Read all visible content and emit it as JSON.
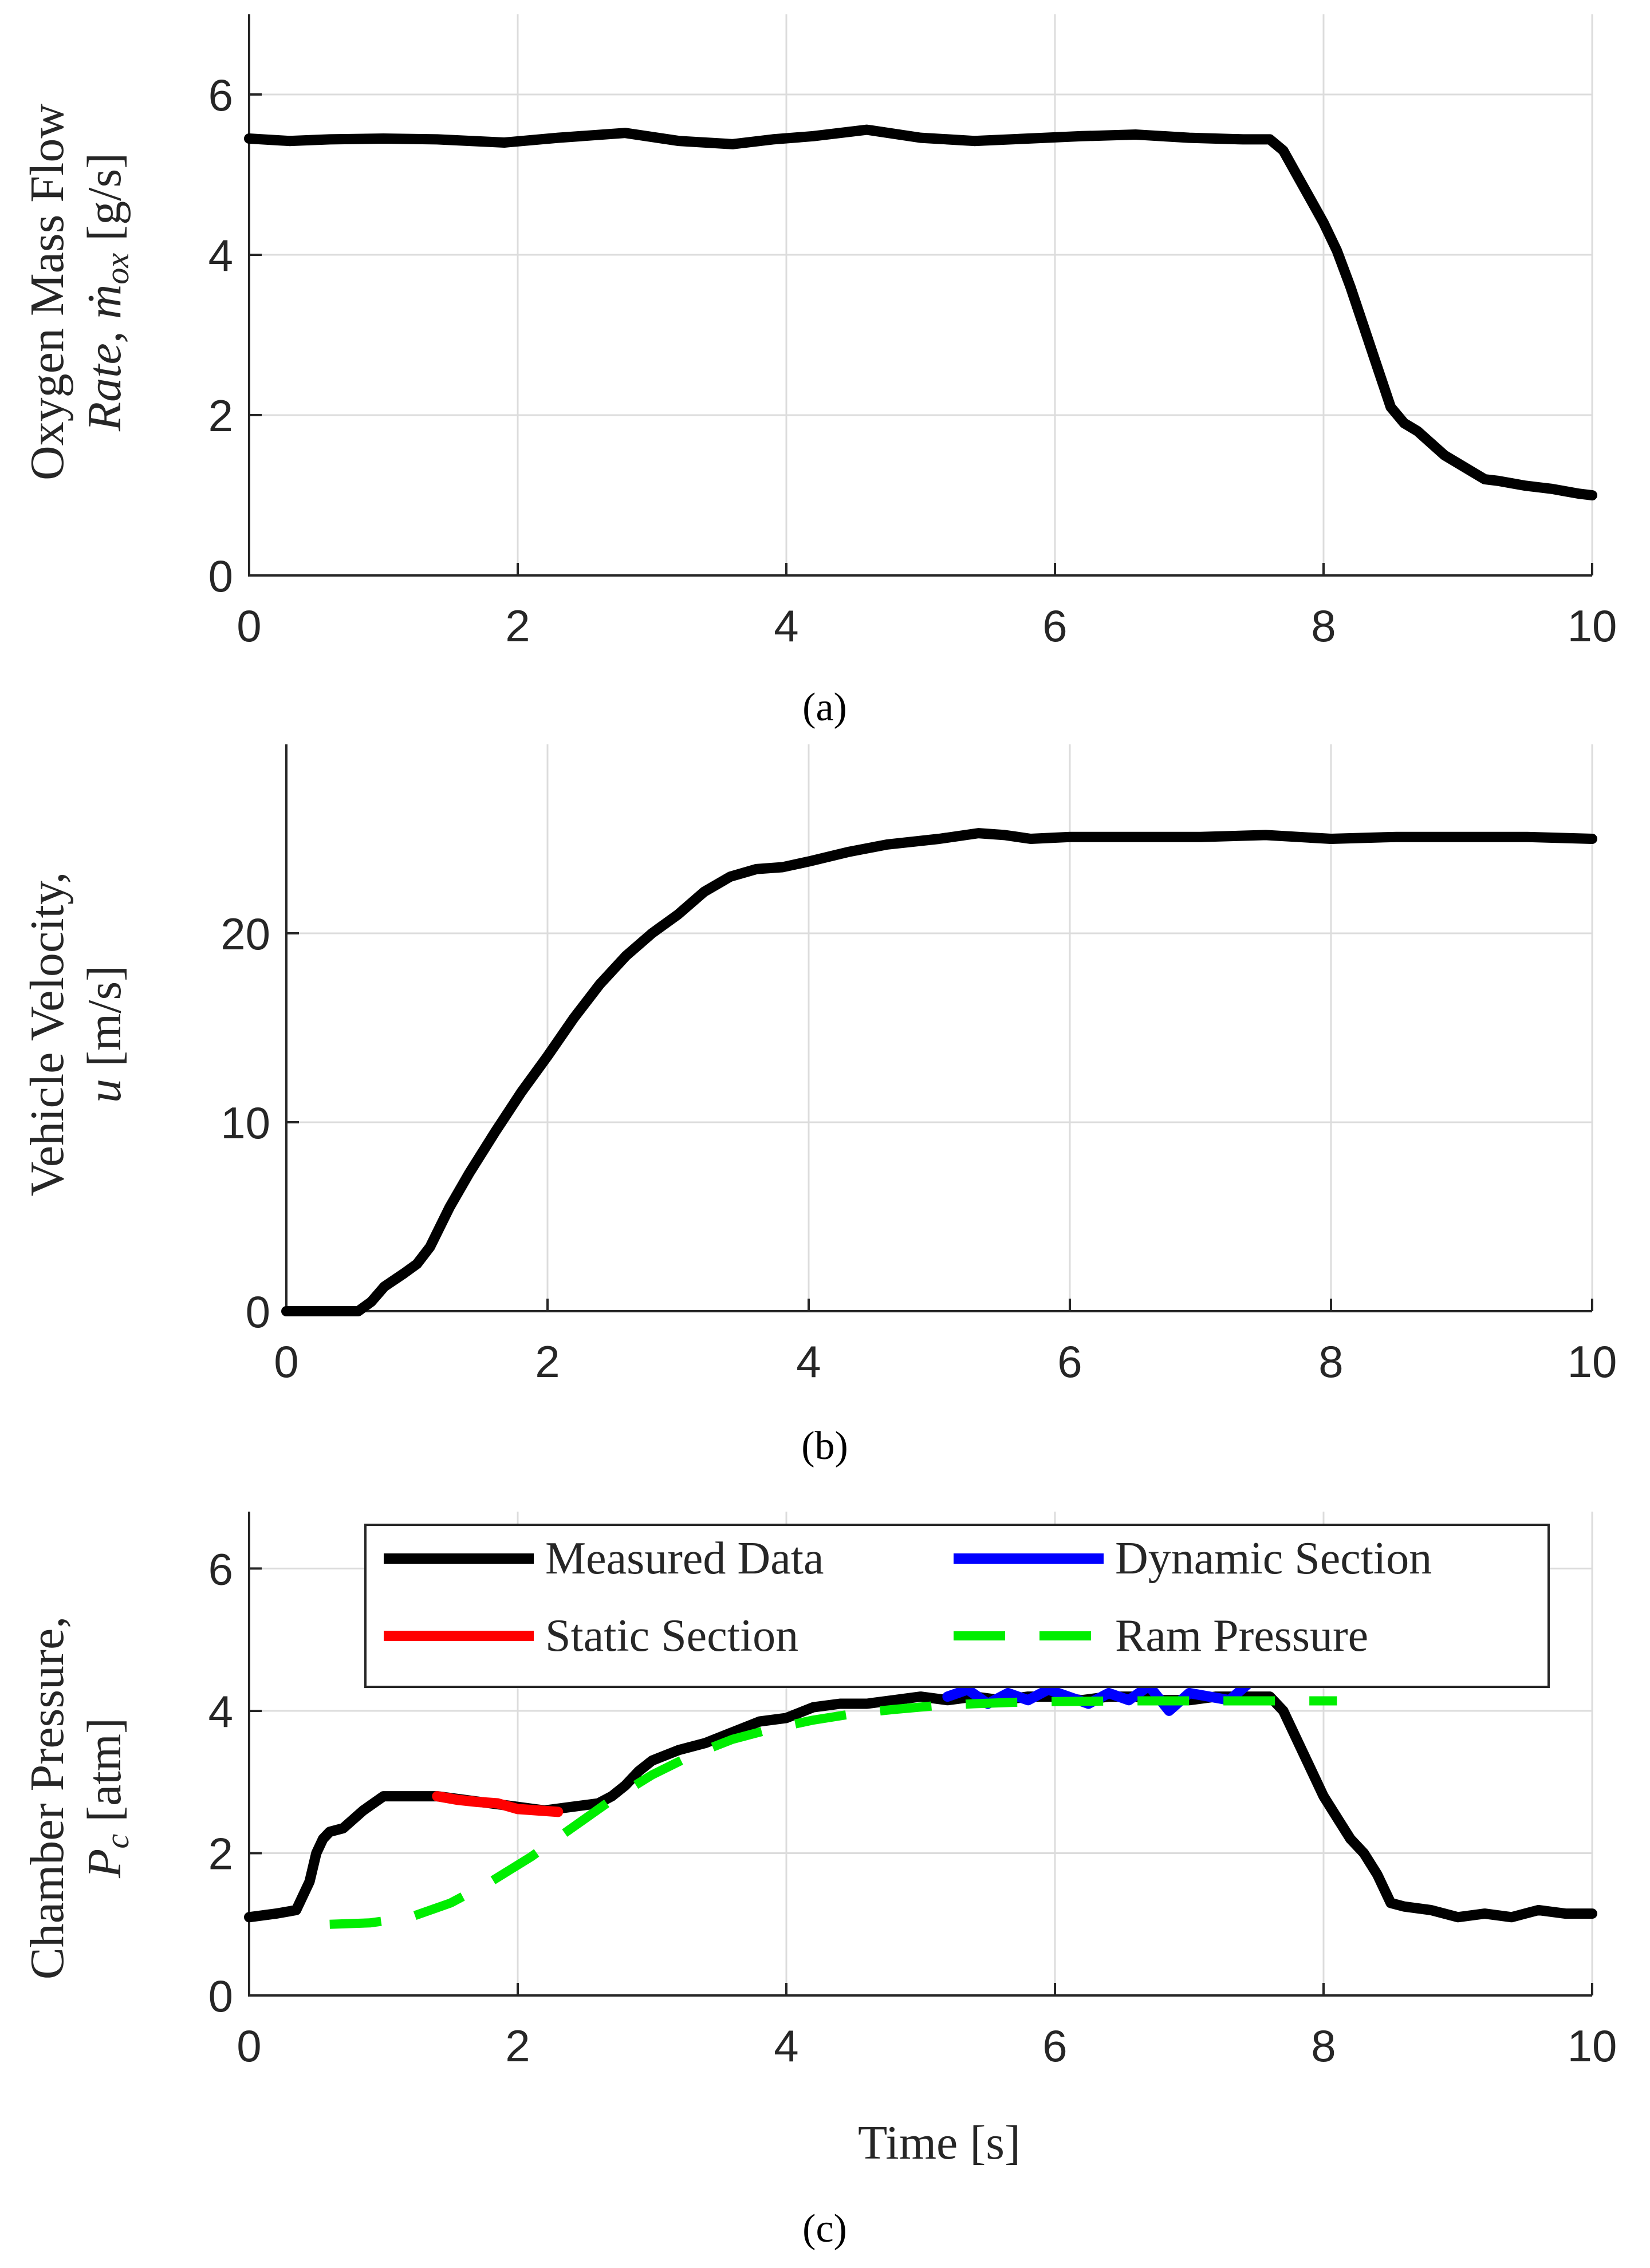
{
  "chart_data": [
    {
      "type": "line",
      "caption": "(a)",
      "ylabel_lines": [
        "Oxygen Mass Flow",
        "Rate, ṁ",
        "ox",
        " [g/s]"
      ],
      "xlabel": "",
      "xlim": [
        0,
        10
      ],
      "ylim": [
        0,
        7
      ],
      "xticks": [
        0,
        2,
        4,
        6,
        8,
        10
      ],
      "yticks": [
        0,
        2,
        4,
        6
      ],
      "grid": true,
      "series": [
        {
          "name": "Oxygen Mass Flow Rate",
          "color": "#000000",
          "x": [
            0,
            0.3,
            0.6,
            1.0,
            1.4,
            1.9,
            2.3,
            2.8,
            3.2,
            3.6,
            3.9,
            4.2,
            4.6,
            5.0,
            5.4,
            5.8,
            6.2,
            6.6,
            7.0,
            7.4,
            7.6,
            7.7,
            7.8,
            7.9,
            8.0,
            8.1,
            8.2,
            8.3,
            8.4,
            8.5,
            8.6,
            8.7,
            8.8,
            8.9,
            9.0,
            9.1,
            9.2,
            9.3,
            9.4,
            9.5,
            9.6,
            9.7,
            9.8,
            9.9,
            10.0
          ],
          "y": [
            5.45,
            5.42,
            5.44,
            5.45,
            5.44,
            5.4,
            5.46,
            5.52,
            5.42,
            5.38,
            5.44,
            5.48,
            5.56,
            5.46,
            5.42,
            5.45,
            5.48,
            5.5,
            5.46,
            5.44,
            5.44,
            5.3,
            5.0,
            4.7,
            4.4,
            4.05,
            3.6,
            3.1,
            2.6,
            2.1,
            1.9,
            1.8,
            1.65,
            1.5,
            1.4,
            1.3,
            1.2,
            1.18,
            1.15,
            1.12,
            1.1,
            1.08,
            1.05,
            1.02,
            1.0
          ]
        }
      ]
    },
    {
      "type": "line",
      "caption": "(b)",
      "ylabel_lines": [
        "Vehicle Velocity,",
        "u",
        " [m/s]"
      ],
      "xlabel": "",
      "xlim": [
        0,
        10
      ],
      "ylim": [
        0,
        30
      ],
      "xticks": [
        0,
        2,
        4,
        6,
        8,
        10
      ],
      "yticks": [
        0,
        10,
        20
      ],
      "grid": true,
      "series": [
        {
          "name": "Vehicle Velocity",
          "color": "#000000",
          "x": [
            0,
            0.3,
            0.55,
            0.65,
            0.75,
            0.9,
            1.0,
            1.1,
            1.25,
            1.4,
            1.6,
            1.8,
            2.0,
            2.2,
            2.4,
            2.6,
            2.8,
            2.9,
            3.0,
            3.2,
            3.4,
            3.6,
            3.8,
            4.0,
            4.3,
            4.6,
            5.0,
            5.3,
            5.5,
            5.7,
            6.0,
            6.5,
            7.0,
            7.5,
            8.0,
            8.5,
            9.0,
            9.5,
            10.0
          ],
          "y": [
            0,
            0,
            0,
            0.5,
            1.3,
            2.0,
            2.5,
            3.4,
            5.5,
            7.3,
            9.5,
            11.6,
            13.5,
            15.5,
            17.3,
            18.8,
            20.0,
            20.5,
            21.0,
            22.2,
            23.0,
            23.4,
            23.5,
            23.8,
            24.3,
            24.7,
            25.0,
            25.3,
            25.2,
            25.0,
            25.1,
            25.1,
            25.1,
            25.2,
            25.0,
            25.1,
            25.1,
            25.1,
            25.0
          ]
        }
      ]
    },
    {
      "type": "line",
      "caption": "(c)",
      "ylabel_lines": [
        "Chamber Pressure,",
        "P",
        "c",
        " [atm]"
      ],
      "xlabel": "Time [s]",
      "xlim": [
        0,
        10
      ],
      "ylim": [
        0,
        6.8
      ],
      "xticks": [
        0,
        2,
        4,
        6,
        8,
        10
      ],
      "yticks": [
        0,
        2,
        4,
        6
      ],
      "grid": true,
      "legend": {
        "placement": "top",
        "entries": [
          "Measured Data",
          "Dynamic Section",
          "Static Section",
          "Ram Pressure"
        ]
      },
      "series": [
        {
          "name": "Measured Data",
          "color": "#000000",
          "style": "solid",
          "x": [
            0,
            0.2,
            0.35,
            0.45,
            0.5,
            0.55,
            0.6,
            0.7,
            0.85,
            1.0,
            1.2,
            1.4,
            1.6,
            1.8,
            2.0,
            2.2,
            2.4,
            2.6,
            2.7,
            2.8,
            2.9,
            3.0,
            3.2,
            3.4,
            3.6,
            3.8,
            4.0,
            4.2,
            4.4,
            4.6,
            4.8,
            5.0,
            5.2,
            5.4,
            5.6,
            5.8,
            6.0,
            6.2,
            6.4,
            6.6,
            6.8,
            7.0,
            7.2,
            7.4,
            7.6,
            7.7,
            7.8,
            7.9,
            8.0,
            8.1,
            8.2,
            8.3,
            8.4,
            8.5,
            8.6,
            8.8,
            9.0,
            9.2,
            9.4,
            9.6,
            9.8,
            10.0
          ],
          "y": [
            1.1,
            1.15,
            1.2,
            1.6,
            2.0,
            2.2,
            2.3,
            2.35,
            2.6,
            2.8,
            2.8,
            2.8,
            2.75,
            2.7,
            2.65,
            2.6,
            2.65,
            2.7,
            2.8,
            2.95,
            3.15,
            3.3,
            3.45,
            3.55,
            3.7,
            3.85,
            3.9,
            4.05,
            4.1,
            4.1,
            4.15,
            4.2,
            4.15,
            4.2,
            4.15,
            4.2,
            4.2,
            4.15,
            4.2,
            4.2,
            4.15,
            4.15,
            4.2,
            4.2,
            4.2,
            4.0,
            3.6,
            3.2,
            2.8,
            2.5,
            2.2,
            2.0,
            1.7,
            1.3,
            1.25,
            1.2,
            1.1,
            1.15,
            1.1,
            1.2,
            1.15,
            1.15
          ]
        },
        {
          "name": "Static Section",
          "color": "#ff0000",
          "style": "solid",
          "x": [
            1.4,
            1.55,
            1.7,
            1.85,
            2.0,
            2.15,
            2.3
          ],
          "y": [
            2.8,
            2.75,
            2.72,
            2.7,
            2.62,
            2.6,
            2.58
          ]
        },
        {
          "name": "Dynamic Section",
          "color": "#0000ff",
          "style": "solid",
          "x": [
            5.2,
            5.35,
            5.5,
            5.65,
            5.8,
            5.95,
            6.1,
            6.25,
            6.4,
            6.55,
            6.7,
            6.85,
            7.0,
            7.15,
            7.3,
            7.45
          ],
          "y": [
            4.2,
            4.3,
            4.1,
            4.25,
            4.15,
            4.3,
            4.2,
            4.1,
            4.25,
            4.15,
            4.35,
            4.0,
            4.25,
            4.2,
            4.15,
            4.4
          ]
        },
        {
          "name": "Ram Pressure",
          "color": "#00ee00",
          "style": "dashed",
          "x": [
            0.6,
            0.9,
            1.2,
            1.5,
            1.8,
            2.1,
            2.4,
            2.7,
            3.0,
            3.3,
            3.6,
            3.9,
            4.2,
            4.5,
            4.8,
            5.1,
            5.4,
            5.7,
            6.0,
            6.5,
            7.0,
            7.5,
            8.1
          ],
          "y": [
            1.0,
            1.02,
            1.1,
            1.3,
            1.6,
            1.95,
            2.35,
            2.75,
            3.1,
            3.38,
            3.6,
            3.75,
            3.87,
            3.96,
            4.02,
            4.07,
            4.1,
            4.12,
            4.13,
            4.14,
            4.14,
            4.14,
            4.14
          ]
        }
      ]
    }
  ]
}
